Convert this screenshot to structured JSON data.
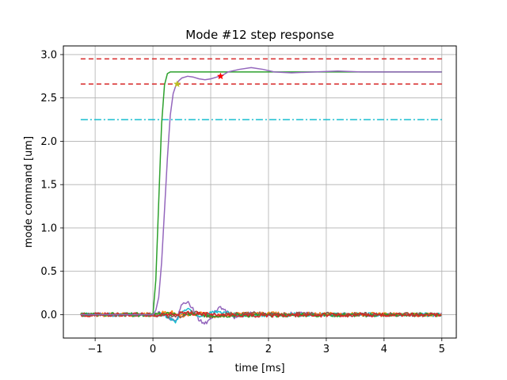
{
  "chart_data": {
    "type": "line",
    "title": "Mode #12 step response",
    "xlabel": "time [ms]",
    "ylabel": "mode command [um]",
    "xlim": [
      -1.55,
      5.25
    ],
    "ylim": [
      -0.27,
      3.1
    ],
    "xticks": [
      -1,
      0,
      1,
      2,
      3,
      4,
      5
    ],
    "xtick_labels": [
      "−1",
      "0",
      "1",
      "2",
      "3",
      "4",
      "5"
    ],
    "yticks": [
      0.0,
      0.5,
      1.0,
      1.5,
      2.0,
      2.5,
      3.0
    ],
    "ytick_labels": [
      "0.0",
      "0.5",
      "1.0",
      "1.5",
      "2.0",
      "2.5",
      "3.0"
    ],
    "grid": true,
    "series": [
      {
        "color": "#2ca02c",
        "style": "solid",
        "kind": "step-command",
        "x": [
          -1.25,
          0.0,
          0.05,
          0.1,
          0.15,
          0.2,
          0.25,
          0.3,
          0.35,
          5.0
        ],
        "y": [
          0.0,
          0.0,
          0.4,
          1.3,
          2.2,
          2.65,
          2.78,
          2.8,
          2.8,
          2.8
        ]
      },
      {
        "color": "#9467bd",
        "style": "solid",
        "kind": "measured-response",
        "x": [
          -1.25,
          0.0,
          0.05,
          0.1,
          0.15,
          0.2,
          0.25,
          0.3,
          0.35,
          0.4,
          0.45,
          0.5,
          0.55,
          0.6,
          0.7,
          0.8,
          0.9,
          1.0,
          1.1,
          1.2,
          1.3,
          1.5,
          1.7,
          1.9,
          2.1,
          2.4,
          2.8,
          3.2,
          3.6,
          4.0,
          4.5,
          5.0
        ],
        "y": [
          0.0,
          0.0,
          0.05,
          0.2,
          0.6,
          1.2,
          1.8,
          2.3,
          2.55,
          2.65,
          2.7,
          2.73,
          2.74,
          2.75,
          2.74,
          2.72,
          2.71,
          2.72,
          2.74,
          2.76,
          2.8,
          2.83,
          2.85,
          2.83,
          2.8,
          2.79,
          2.8,
          2.81,
          2.8,
          2.8,
          2.8,
          2.8
        ]
      },
      {
        "color": "#d62728",
        "style": "dashed",
        "kind": "upper-tolerance",
        "x": [
          -1.25,
          5.0
        ],
        "y": [
          2.95,
          2.95
        ]
      },
      {
        "color": "#d62728",
        "style": "dashed",
        "kind": "lower-tolerance",
        "x": [
          -1.25,
          5.0
        ],
        "y": [
          2.66,
          2.66
        ]
      },
      {
        "color": "#17becf",
        "style": "dashdot",
        "kind": "threshold",
        "x": [
          -1.25,
          5.0
        ],
        "y": [
          2.25,
          2.25
        ]
      },
      {
        "color": "#9467bd",
        "style": "solid",
        "kind": "coupled-mode",
        "x": [
          -1.25,
          0.0,
          0.1,
          0.2,
          0.3,
          0.4,
          0.5,
          0.6,
          0.7,
          0.8,
          0.9,
          1.0,
          1.1,
          1.2,
          1.3,
          1.4,
          1.5,
          1.7,
          2.0,
          2.5,
          3.0,
          5.0
        ],
        "y": [
          0.0,
          0.0,
          0.02,
          0.0,
          -0.04,
          -0.06,
          0.12,
          0.14,
          0.06,
          -0.06,
          -0.1,
          -0.05,
          0.06,
          0.08,
          0.03,
          -0.03,
          -0.01,
          0.02,
          0.0,
          0.01,
          0.0,
          0.0
        ]
      },
      {
        "color": "#17becf",
        "style": "solid",
        "kind": "coupled-mode",
        "x": [
          -1.25,
          0.0,
          0.2,
          0.3,
          0.4,
          0.5,
          0.6,
          0.8,
          1.0,
          1.2,
          1.5,
          2.0,
          5.0
        ],
        "y": [
          0.0,
          0.0,
          0.0,
          -0.05,
          -0.08,
          0.04,
          0.07,
          -0.02,
          0.02,
          0.03,
          -0.01,
          0.0,
          0.0
        ]
      },
      {
        "color": "#ff7f0e",
        "style": "solid",
        "kind": "coupled-mode",
        "x": [
          -1.25,
          0.0,
          0.3,
          0.5,
          0.8,
          1.1,
          1.5,
          5.0
        ],
        "y": [
          0.0,
          0.0,
          0.03,
          -0.02,
          0.02,
          -0.02,
          0.01,
          0.0
        ]
      },
      {
        "color": "#8c564b",
        "style": "solid",
        "kind": "coupled-mode",
        "x": [
          -1.25,
          0.0,
          0.4,
          0.7,
          1.0,
          1.4,
          5.0
        ],
        "y": [
          0.0,
          0.0,
          -0.03,
          0.03,
          -0.02,
          0.01,
          0.0
        ]
      },
      {
        "color": "#2ca02c",
        "style": "solid",
        "kind": "coupled-mode",
        "x": [
          -1.25,
          0.0,
          0.5,
          1.0,
          5.0
        ],
        "y": [
          0.0,
          0.0,
          0.01,
          -0.01,
          0.0
        ]
      },
      {
        "color": "#d62728",
        "style": "solid",
        "kind": "coupled-mode",
        "x": [
          -1.25,
          0.0,
          0.6,
          1.2,
          5.0
        ],
        "y": [
          0.0,
          0.0,
          0.02,
          -0.01,
          0.0
        ]
      }
    ],
    "markers": [
      {
        "x": 0.42,
        "y": 2.66,
        "color": "#bcbd22",
        "shape": "star"
      },
      {
        "x": 1.17,
        "y": 2.75,
        "color": "#ff0000",
        "shape": "star"
      }
    ]
  }
}
